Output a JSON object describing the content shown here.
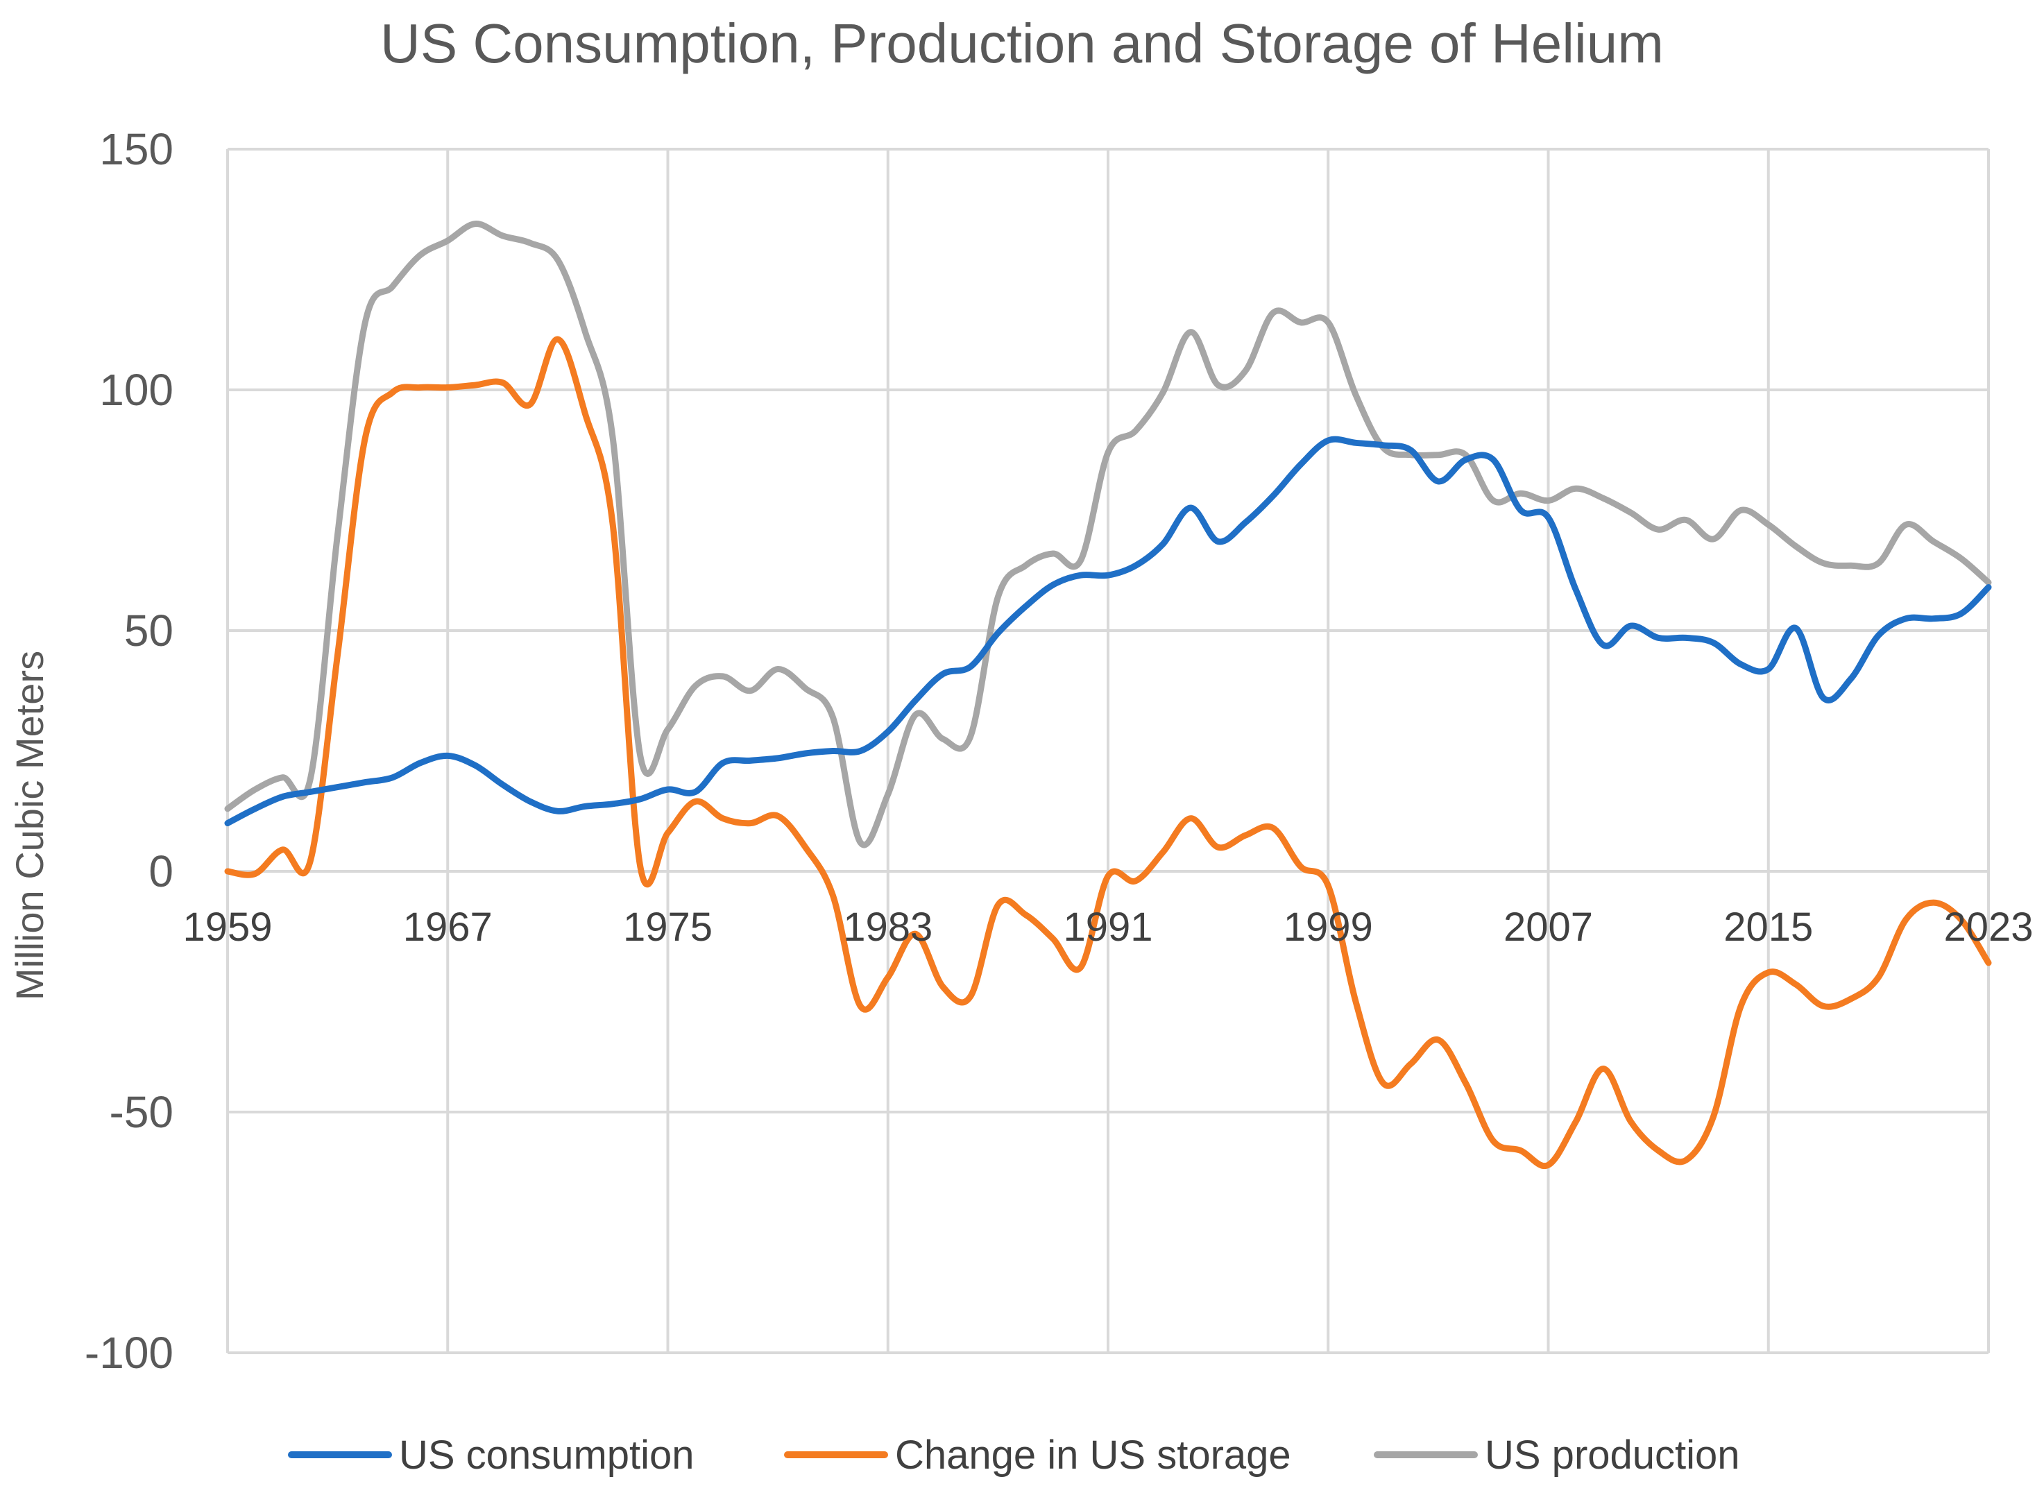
{
  "chart_data": {
    "type": "line",
    "title": "US Consumption, Production and Storage of Helium",
    "xlabel": "",
    "ylabel": "Million  Cubic Meters",
    "xlim": [
      1959,
      2023
    ],
    "ylim": [
      -100,
      150
    ],
    "yticks": [
      150,
      100,
      50,
      0,
      -50,
      -100
    ],
    "ytick_labels": [
      "150",
      "100",
      "50",
      "0",
      "-50",
      "-100"
    ],
    "xticks": [
      1959,
      1967,
      1975,
      1983,
      1991,
      1999,
      2007,
      2015,
      2023
    ],
    "xtick_labels": [
      "1959",
      "1967",
      "1975",
      "1983",
      "1991",
      "1999",
      "2007",
      "2015",
      "2023"
    ],
    "grid": true,
    "legend_position": "bottom",
    "x": [
      1959,
      1960,
      1961,
      1962,
      1963,
      1964,
      1965,
      1966,
      1967,
      1968,
      1969,
      1970,
      1971,
      1972,
      1973,
      1974,
      1975,
      1976,
      1977,
      1978,
      1979,
      1980,
      1981,
      1982,
      1983,
      1984,
      1985,
      1986,
      1987,
      1988,
      1989,
      1990,
      1991,
      1992,
      1993,
      1994,
      1995,
      1996,
      1997,
      1998,
      1999,
      2000,
      2001,
      2002,
      2003,
      2004,
      2005,
      2006,
      2007,
      2008,
      2009,
      2010,
      2011,
      2012,
      2013,
      2014,
      2015,
      2016,
      2017,
      2018,
      2019,
      2020,
      2021,
      2022,
      2023
    ],
    "series": [
      {
        "name": "US consumption",
        "color": "#1f6fc6",
        "values": [
          10,
          13,
          15.5,
          16.5,
          17.5,
          18.5,
          19.5,
          22.5,
          24,
          22,
          18,
          14.5,
          12.5,
          13.5,
          14,
          15,
          17,
          16.5,
          22.5,
          23,
          23.5,
          24.5,
          25,
          25,
          29,
          35.5,
          41,
          42.5,
          49.5,
          55,
          59.5,
          61.5,
          61.5,
          63.5,
          68,
          75.5,
          68.5,
          72.5,
          78,
          84.5,
          89.5,
          89,
          88.5,
          87.5,
          81,
          85.5,
          85.5,
          75,
          73.5,
          58.5,
          47,
          51,
          48.5,
          48.5,
          47.5,
          43,
          42,
          50.5,
          36,
          40,
          49,
          52.5,
          52.5,
          53.5,
          59
        ]
      },
      {
        "name": "Change in US storage",
        "color": "#f47b20",
        "values": [
          0,
          -0.5,
          4.5,
          2,
          45,
          90,
          99.5,
          100.5,
          100.5,
          101,
          101.5,
          97,
          110.5,
          95,
          72,
          1,
          8,
          14.5,
          11,
          10,
          11.5,
          5,
          -5,
          -28,
          -22,
          -13,
          -24,
          -26,
          -7,
          -9,
          -14,
          -20,
          -1,
          -2,
          4,
          11,
          5,
          7.5,
          9,
          1,
          -3,
          -27,
          -44,
          -40,
          -35,
          -44,
          -56,
          -58,
          -61,
          -52,
          -41,
          -52,
          -58,
          -60,
          -51,
          -28,
          -21,
          -23.5,
          -28,
          -26.5,
          -22,
          -10,
          -6.5,
          -10,
          -19
        ]
      },
      {
        "name": "US production",
        "color": "#a6a6a6",
        "values": [
          13,
          17,
          19.5,
          19,
          70,
          114,
          121.5,
          128,
          131,
          134.5,
          132,
          130.5,
          127,
          112,
          90,
          24,
          29.5,
          38.5,
          40.5,
          37.5,
          42,
          38,
          32,
          6,
          16,
          32.5,
          27.5,
          28,
          57,
          63.5,
          66,
          64.5,
          87,
          91.5,
          99.5,
          112,
          101,
          104,
          116,
          114,
          114,
          99,
          88,
          86.5,
          86.5,
          86.5,
          77,
          78.5,
          77,
          79.5,
          77.5,
          74.5,
          71,
          73,
          69,
          75,
          72,
          67.5,
          64,
          63.5,
          64,
          72,
          68.5,
          65,
          60
        ]
      }
    ]
  }
}
